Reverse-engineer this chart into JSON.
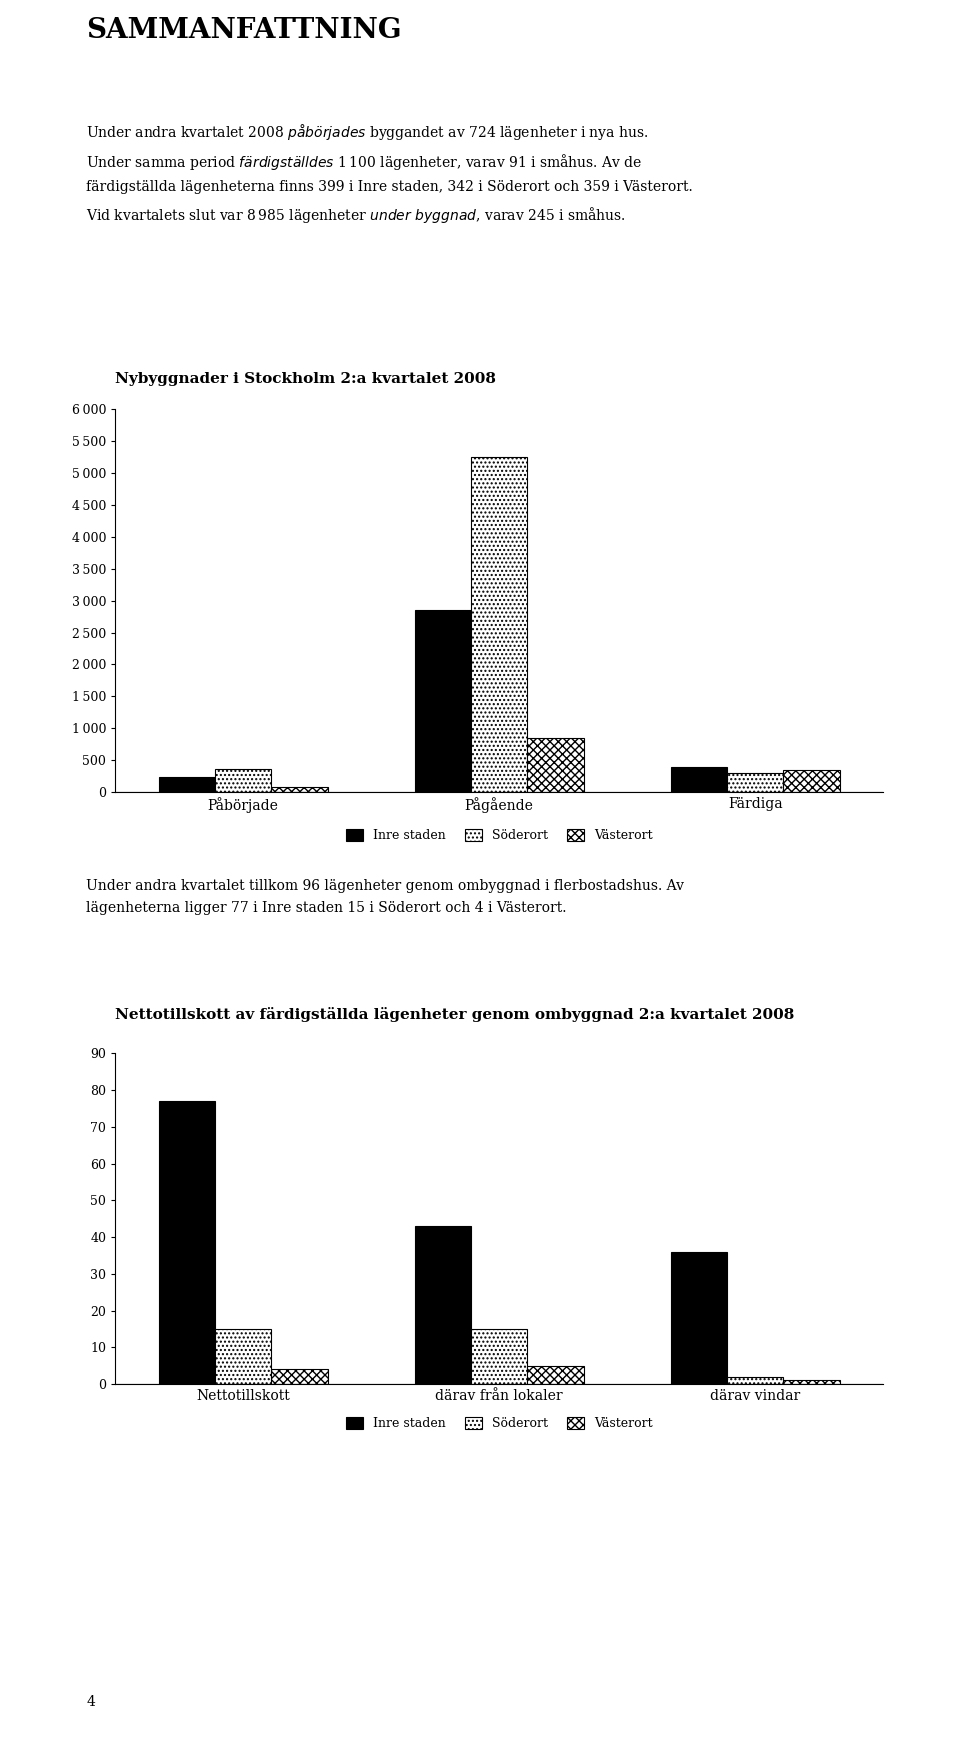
{
  "chart1_title": "Nybyggnader i Stockholm 2:a kvartalet 2008",
  "chart1_categories": [
    "Påbörjade",
    "Pågående",
    "Färdiga"
  ],
  "chart1_inre": [
    230,
    2850,
    399
  ],
  "chart1_soderort": [
    370,
    5250,
    300
  ],
  "chart1_vasterort": [
    85,
    850,
    350
  ],
  "chart1_ylim": [
    0,
    6000
  ],
  "chart1_yticks": [
    0,
    500,
    1000,
    1500,
    2000,
    2500,
    3000,
    3500,
    4000,
    4500,
    5000,
    5500,
    6000
  ],
  "chart2_title": "Nettotillskott av färdigställda lägenheter genom ombyggnad 2:a kvartalet 2008",
  "chart2_categories": [
    "Nettotillskott",
    "därav från lokaler",
    "därav vindar"
  ],
  "chart2_inre": [
    77,
    43,
    36
  ],
  "chart2_soderort": [
    15,
    15,
    2
  ],
  "chart2_vasterort": [
    4,
    5,
    1
  ],
  "chart2_ylim": [
    0,
    90
  ],
  "chart2_yticks": [
    0,
    10,
    20,
    30,
    40,
    50,
    60,
    70,
    80,
    90
  ],
  "legend_labels": [
    "Inre staden",
    "Söderort",
    "Västerort"
  ],
  "bar_width": 0.22,
  "text_title": "SAMMANFATTNING",
  "text_footer": "4",
  "bg_color": "#ffffff",
  "font_size_title_main": 20,
  "font_size_chart_title": 11,
  "font_size_body": 10,
  "font_size_axis": 9,
  "font_size_legend": 9
}
